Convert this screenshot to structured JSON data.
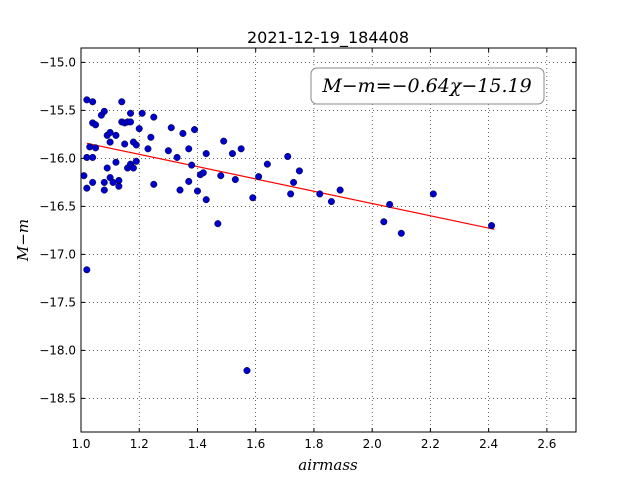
{
  "chart_data": {
    "type": "scatter",
    "title": "2021-12-19_184408",
    "xlabel": "airmass",
    "ylabel": "M−m",
    "xlim": [
      1.0,
      2.7
    ],
    "ylim": [
      -18.85,
      -14.85
    ],
    "y_inverted": true,
    "xticks": [
      "1.0",
      "1.2",
      "1.4",
      "1.6",
      "1.8",
      "2.0",
      "2.2",
      "2.4",
      "2.6"
    ],
    "yticks": [
      "−15.0",
      "−15.5",
      "−16.0",
      "−16.5",
      "−17.0",
      "−17.5",
      "−18.0",
      "−18.5"
    ],
    "grid": true,
    "annotation": "M−m=−0.64χ−15.19",
    "point_color": "#0000cc",
    "fit_color": "#ff0000",
    "fit": {
      "slope": -0.64,
      "intercept": -15.19,
      "x_range": [
        1.02,
        2.42
      ]
    },
    "points": [
      [
        1.02,
        -15.39
      ],
      [
        1.04,
        -15.41
      ],
      [
        1.04,
        -15.63
      ],
      [
        1.05,
        -15.65
      ],
      [
        1.01,
        -16.18
      ],
      [
        1.02,
        -16.31
      ],
      [
        1.02,
        -15.99
      ],
      [
        1.03,
        -15.88
      ],
      [
        1.04,
        -15.99
      ],
      [
        1.05,
        -15.89
      ],
      [
        1.04,
        -16.25
      ],
      [
        1.02,
        -17.16
      ],
      [
        1.07,
        -15.55
      ],
      [
        1.08,
        -15.51
      ],
      [
        1.08,
        -16.25
      ],
      [
        1.08,
        -16.33
      ],
      [
        1.09,
        -15.76
      ],
      [
        1.09,
        -16.1
      ],
      [
        1.1,
        -15.73
      ],
      [
        1.1,
        -15.83
      ],
      [
        1.1,
        -16.2
      ],
      [
        1.11,
        -16.25
      ],
      [
        1.12,
        -15.76
      ],
      [
        1.12,
        -16.04
      ],
      [
        1.13,
        -16.29
      ],
      [
        1.13,
        -16.23
      ],
      [
        1.14,
        -15.41
      ],
      [
        1.14,
        -15.62
      ],
      [
        1.15,
        -15.63
      ],
      [
        1.15,
        -15.85
      ],
      [
        1.16,
        -15.62
      ],
      [
        1.16,
        -16.1
      ],
      [
        1.17,
        -15.53
      ],
      [
        1.17,
        -15.62
      ],
      [
        1.17,
        -16.06
      ],
      [
        1.18,
        -16.1
      ],
      [
        1.18,
        -15.83
      ],
      [
        1.19,
        -15.86
      ],
      [
        1.19,
        -16.03
      ],
      [
        1.2,
        -15.69
      ],
      [
        1.21,
        -15.53
      ],
      [
        1.23,
        -15.9
      ],
      [
        1.24,
        -15.78
      ],
      [
        1.25,
        -16.27
      ],
      [
        1.25,
        -15.57
      ],
      [
        1.3,
        -15.92
      ],
      [
        1.31,
        -15.68
      ],
      [
        1.33,
        -15.99
      ],
      [
        1.34,
        -16.33
      ],
      [
        1.35,
        -15.74
      ],
      [
        1.37,
        -16.24
      ],
      [
        1.37,
        -15.9
      ],
      [
        1.38,
        -16.07
      ],
      [
        1.39,
        -15.7
      ],
      [
        1.4,
        -16.34
      ],
      [
        1.41,
        -16.17
      ],
      [
        1.42,
        -16.15
      ],
      [
        1.43,
        -15.95
      ],
      [
        1.43,
        -16.43
      ],
      [
        1.47,
        -16.68
      ],
      [
        1.48,
        -16.18
      ],
      [
        1.49,
        -15.82
      ],
      [
        1.52,
        -15.95
      ],
      [
        1.53,
        -16.22
      ],
      [
        1.55,
        -15.9
      ],
      [
        1.57,
        -18.21
      ],
      [
        1.59,
        -16.41
      ],
      [
        1.61,
        -16.19
      ],
      [
        1.64,
        -16.06
      ],
      [
        1.71,
        -15.98
      ],
      [
        1.72,
        -16.37
      ],
      [
        1.73,
        -16.25
      ],
      [
        1.75,
        -16.13
      ],
      [
        1.82,
        -16.37
      ],
      [
        1.86,
        -16.45
      ],
      [
        1.89,
        -16.33
      ],
      [
        2.04,
        -16.66
      ],
      [
        2.06,
        -16.48
      ],
      [
        2.1,
        -16.78
      ],
      [
        2.21,
        -16.37
      ],
      [
        2.41,
        -16.7
      ]
    ]
  }
}
